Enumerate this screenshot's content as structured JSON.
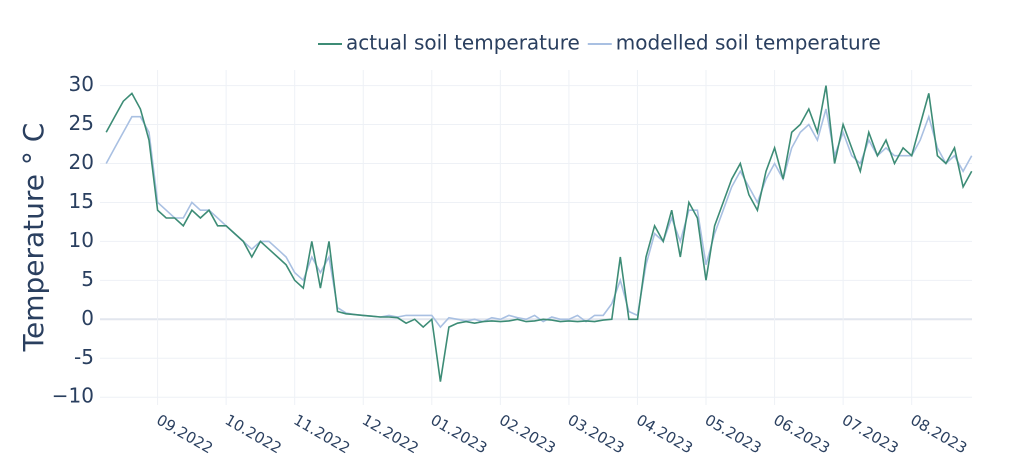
{
  "chart_data": {
    "type": "line",
    "y_label": "Temperature ° C",
    "x": [
      0.25,
      0.375,
      0.5,
      0.625,
      0.75,
      0.875,
      1.0,
      1.125,
      1.25,
      1.375,
      1.5,
      1.625,
      1.75,
      1.875,
      2.0,
      2.125,
      2.25,
      2.375,
      2.5,
      2.625,
      2.75,
      2.875,
      3.0,
      3.125,
      3.25,
      3.375,
      3.5,
      3.625,
      3.75,
      3.875,
      4.0,
      4.125,
      4.25,
      4.375,
      4.5,
      4.625,
      4.75,
      4.875,
      5.0,
      5.125,
      5.25,
      5.375,
      5.5,
      5.625,
      5.75,
      5.875,
      6.0,
      6.125,
      6.25,
      6.375,
      6.5,
      6.625,
      6.75,
      6.875,
      7.0,
      7.125,
      7.25,
      7.375,
      7.5,
      7.625,
      7.75,
      7.875,
      8.0,
      8.125,
      8.25,
      8.375,
      8.5,
      8.625,
      8.75,
      8.875,
      9.0,
      9.125,
      9.25,
      9.375,
      9.5,
      9.625,
      9.75,
      9.875,
      10.0,
      10.125,
      10.25,
      10.375,
      10.5,
      10.625,
      10.75,
      10.875,
      11.0,
      11.125,
      11.25,
      11.375,
      11.5,
      11.625,
      11.75,
      11.875,
      12.0,
      12.125,
      12.25,
      12.375,
      12.5,
      12.625,
      12.75,
      12.875
    ],
    "series": [
      {
        "name": "actual soil temperature",
        "color": "#3d8c76",
        "values": [
          24,
          26,
          28,
          29,
          27,
          23,
          14,
          13,
          13,
          12,
          14,
          13,
          14,
          12,
          12,
          11,
          10,
          8,
          10,
          9,
          8,
          7,
          5,
          4,
          10,
          4,
          10,
          1.0,
          0.7,
          0.6,
          0.5,
          0.4,
          0.3,
          0.3,
          0.2,
          -0.5,
          0,
          -1,
          0,
          -8,
          -1,
          -0.5,
          -0.3,
          -0.5,
          -0.3,
          -0.2,
          -0.3,
          -0.2,
          0,
          -0.3,
          -0.2,
          0,
          -0.1,
          -0.3,
          -0.2,
          -0.3,
          -0.2,
          -0.3,
          -0.1,
          0,
          8,
          0,
          0,
          8,
          12,
          10,
          14,
          8,
          15,
          13,
          5,
          12,
          15,
          18,
          20,
          16,
          14,
          19,
          22,
          18,
          24,
          25,
          27,
          24,
          30,
          20,
          25,
          22,
          19,
          24,
          21,
          23,
          20,
          22,
          21,
          25,
          29,
          21,
          20,
          22,
          17,
          19
        ]
      },
      {
        "name": "modelled soil temperature",
        "color": "#a9c0e2",
        "values": [
          20,
          22,
          24,
          26,
          26,
          24,
          15,
          14,
          13,
          13,
          15,
          14,
          14,
          13,
          12,
          11,
          10,
          9,
          10,
          10,
          9,
          8,
          6,
          5,
          8,
          6,
          8,
          1.5,
          0.8,
          0.6,
          0.5,
          0.4,
          0.3,
          0.5,
          0.3,
          0.5,
          0.5,
          0.5,
          0.5,
          -1,
          0.2,
          0,
          -0.2,
          0,
          -0.3,
          0.2,
          0,
          0.5,
          0.2,
          0,
          0.5,
          -0.3,
          0.3,
          0,
          0,
          0.5,
          -0.3,
          0.5,
          0.5,
          2,
          5,
          1,
          0.5,
          7,
          11,
          10,
          13,
          10,
          14,
          14,
          7,
          11,
          14,
          17,
          19,
          17,
          15,
          18,
          20,
          18,
          22,
          24,
          25,
          23,
          27,
          21,
          24,
          21,
          20,
          23,
          21,
          22,
          21,
          21,
          21,
          23,
          26,
          22,
          20,
          21,
          19,
          21
        ]
      }
    ],
    "xlim": [
      0.16,
      12.88
    ],
    "xticks": [
      {
        "value": 1,
        "label": "09.2022"
      },
      {
        "value": 2,
        "label": "10.2022"
      },
      {
        "value": 3,
        "label": "11.2022"
      },
      {
        "value": 4,
        "label": "12.2022"
      },
      {
        "value": 5,
        "label": "01.2023"
      },
      {
        "value": 6,
        "label": "02.2023"
      },
      {
        "value": 7,
        "label": "03.2023"
      },
      {
        "value": 8,
        "label": "04.2023"
      },
      {
        "value": 9,
        "label": "05.2023"
      },
      {
        "value": 10,
        "label": "06.2023"
      },
      {
        "value": 11,
        "label": "07.2023"
      },
      {
        "value": 12,
        "label": "08.2023"
      }
    ],
    "ylim": [
      -11,
      32
    ],
    "yticks": [
      {
        "value": -10,
        "label": "−10"
      },
      -5,
      0,
      5,
      10,
      15,
      20,
      25,
      30
    ],
    "grid": true
  }
}
